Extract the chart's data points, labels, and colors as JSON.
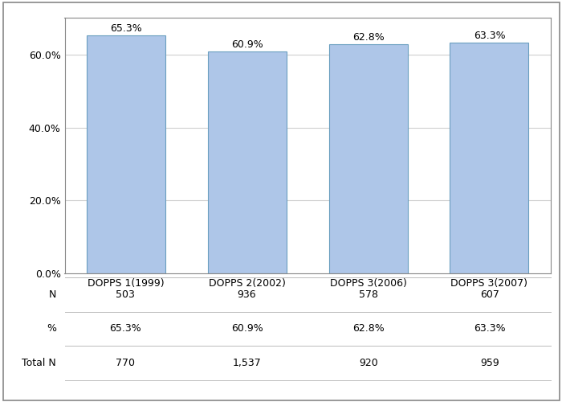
{
  "categories": [
    "DOPPS 1(1999)",
    "DOPPS 2(2002)",
    "DOPPS 3(2006)",
    "DOPPS 3(2007)"
  ],
  "values": [
    65.3,
    60.9,
    62.8,
    63.3
  ],
  "bar_color": "#aec6e8",
  "bar_edge_color": "#6a9fc0",
  "ylim": [
    0,
    70
  ],
  "yticks": [
    0,
    20,
    40,
    60
  ],
  "ytick_labels": [
    "0.0%",
    "20.0%",
    "40.0%",
    "60.0%"
  ],
  "bar_labels": [
    "65.3%",
    "60.9%",
    "62.8%",
    "63.3%"
  ],
  "table_col_values": [
    [
      "503",
      "936",
      "578",
      "607"
    ],
    [
      "65.3%",
      "60.9%",
      "62.8%",
      "63.3%"
    ],
    [
      "770",
      "1,537",
      "920",
      "959"
    ]
  ],
  "table_row_labels": [
    "N",
    "%",
    "Total N"
  ],
  "fontsize": 9,
  "bar_width": 0.65,
  "outer_border_color": "#aaaaaa",
  "grid_color": "#d0d0d0",
  "spine_color": "#888888"
}
